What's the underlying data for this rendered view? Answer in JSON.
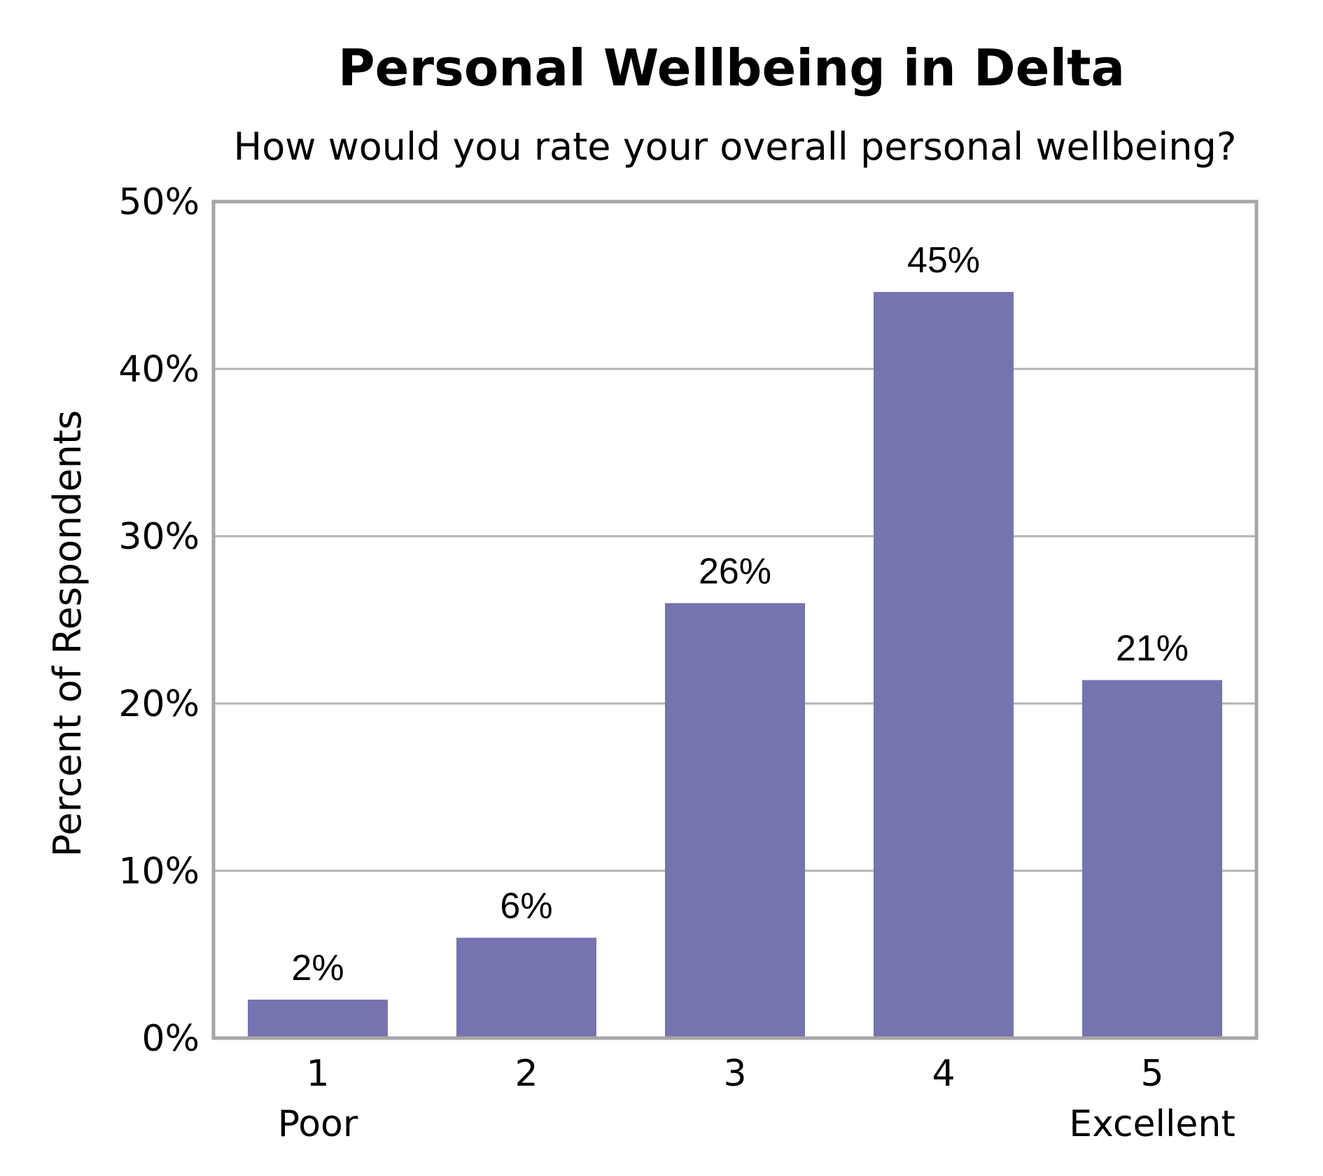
{
  "chart_data": {
    "type": "bar",
    "title": "Personal Wellbeing in Delta",
    "subtitle": "How would you rate your overall personal wellbeing?",
    "xlabel": "",
    "ylabel": "Percent of Respondents",
    "categories": [
      "1",
      "2",
      "3",
      "4",
      "5"
    ],
    "category_sublabels": [
      "Poor",
      "",
      "",
      "",
      "Excellent"
    ],
    "values": [
      2.3,
      6,
      26,
      44.6,
      21.4
    ],
    "data_labels": [
      "2%",
      "6%",
      "26%",
      "45%",
      "21%"
    ],
    "ylim": [
      0,
      50
    ],
    "yticks": [
      0,
      10,
      20,
      30,
      40,
      50
    ],
    "ytick_labels": [
      "0%",
      "10%",
      "20%",
      "30%",
      "40%",
      "50%"
    ],
    "grid": true,
    "legend": "none",
    "colors": {
      "bar": "#7673b1",
      "grid": "#b3b3b3",
      "frame": "#a6a6a6"
    }
  }
}
